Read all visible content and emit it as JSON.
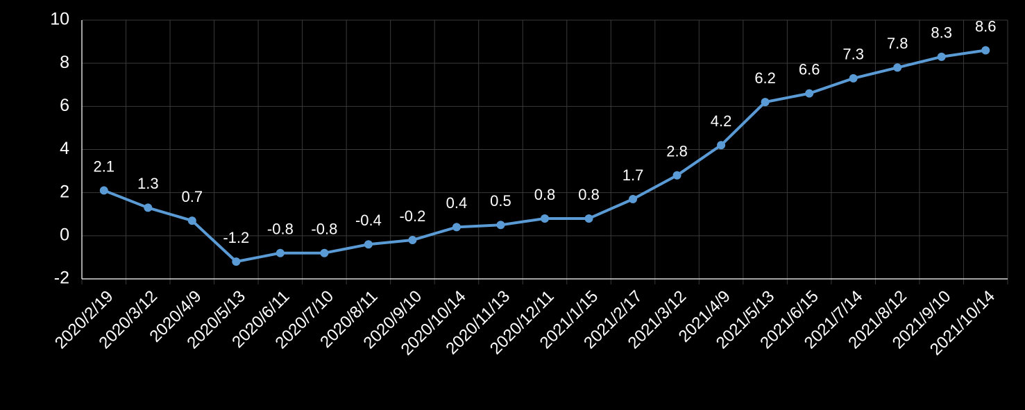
{
  "chart_data": {
    "type": "line",
    "categories": [
      "2020/2/19",
      "2020/3/12",
      "2020/4/9",
      "2020/5/13",
      "2020/6/11",
      "2020/7/10",
      "2020/8/11",
      "2020/9/10",
      "2020/10/14",
      "2020/11/13",
      "2020/12/11",
      "2021/1/15",
      "2021/2/17",
      "2021/3/12",
      "2021/4/9",
      "2021/5/13",
      "2021/6/15",
      "2021/7/14",
      "2021/8/12",
      "2021/9/10",
      "2021/10/14"
    ],
    "values": [
      2.1,
      1.3,
      0.7,
      -1.2,
      -0.8,
      -0.8,
      -0.4,
      -0.2,
      0.4,
      0.5,
      0.8,
      0.8,
      1.7,
      2.8,
      4.2,
      6.2,
      6.6,
      7.3,
      7.8,
      8.3,
      8.6
    ],
    "color": "#5b9bd5",
    "ylim": [
      -2,
      10
    ],
    "yticks": [
      -2,
      0,
      2,
      4,
      6,
      8,
      10
    ],
    "grid": true
  }
}
